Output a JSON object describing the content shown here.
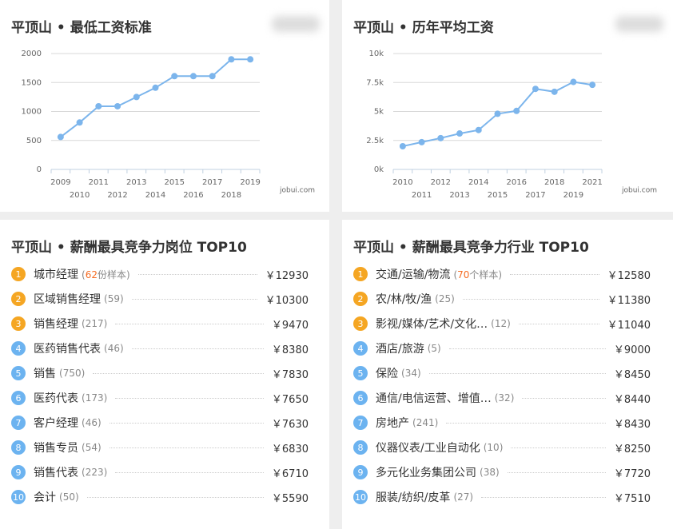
{
  "chart_data": [
    {
      "type": "line",
      "title": "平顶山 • 最低工资标准",
      "color": "#7cb5ec",
      "watermark": "jobui.com",
      "categories": [
        "2009",
        "2010",
        "2011",
        "2012",
        "2013",
        "2014",
        "2015",
        "2016",
        "2017",
        "2018",
        "2019"
      ],
      "values": [
        560,
        810,
        1090,
        1090,
        1250,
        1410,
        1610,
        1610,
        1610,
        1900,
        1900
      ],
      "ylim": [
        0,
        2000
      ],
      "yticks": [
        0,
        500,
        1000,
        1500,
        2000
      ],
      "grid": true
    },
    {
      "type": "line",
      "title": "平顶山 • 历年平均工资",
      "color": "#7cb5ec",
      "watermark": "jobui.com",
      "categories": [
        "2010",
        "2011",
        "2012",
        "2013",
        "2014",
        "2015",
        "2016",
        "2017",
        "2018",
        "2019",
        "2021"
      ],
      "values": [
        2000,
        2350,
        2700,
        3100,
        3400,
        4800,
        5050,
        6950,
        6700,
        7550,
        7300
      ],
      "ylim": [
        0,
        10000
      ],
      "yticks": [
        {
          "value": 0,
          "label": "0k"
        },
        {
          "value": 2500,
          "label": "2.5k"
        },
        {
          "value": 5000,
          "label": "5k"
        },
        {
          "value": 7500,
          "label": "7.5k"
        },
        {
          "value": 10000,
          "label": "10k"
        }
      ],
      "grid": true
    }
  ],
  "lists": [
    {
      "title": "平顶山 • 薪酬最具竞争力岗位 TOP10",
      "items": [
        {
          "rank": 1,
          "name": "城市经理",
          "count": 62,
          "count_note": "份样本",
          "salary": "￥12930"
        },
        {
          "rank": 2,
          "name": "区域销售经理",
          "count": 59,
          "salary": "￥10300"
        },
        {
          "rank": 3,
          "name": "销售经理",
          "count": 217,
          "salary": "￥9470"
        },
        {
          "rank": 4,
          "name": "医药销售代表",
          "count": 46,
          "salary": "￥8380"
        },
        {
          "rank": 5,
          "name": "销售",
          "count": 750,
          "salary": "￥7830"
        },
        {
          "rank": 6,
          "name": "医药代表",
          "count": 173,
          "salary": "￥7650"
        },
        {
          "rank": 7,
          "name": "客户经理",
          "count": 46,
          "salary": "￥7630"
        },
        {
          "rank": 8,
          "name": "销售专员",
          "count": 54,
          "salary": "￥6830"
        },
        {
          "rank": 9,
          "name": "销售代表",
          "count": 223,
          "salary": "￥6710"
        },
        {
          "rank": 10,
          "name": "会计",
          "count": 50,
          "salary": "￥5590"
        }
      ]
    },
    {
      "title": "平顶山 • 薪酬最具竞争力行业 TOP10",
      "items": [
        {
          "rank": 1,
          "name": "交通/运输/物流",
          "count": 70,
          "count_note": "个样本",
          "salary": "￥12580"
        },
        {
          "rank": 2,
          "name": "农/林/牧/渔",
          "count": 25,
          "salary": "￥11380"
        },
        {
          "rank": 3,
          "name": "影视/媒体/艺术/文化…",
          "count": 12,
          "salary": "￥11040"
        },
        {
          "rank": 4,
          "name": "酒店/旅游",
          "count": 5,
          "salary": "￥9000"
        },
        {
          "rank": 5,
          "name": "保险",
          "count": 34,
          "salary": "￥8450"
        },
        {
          "rank": 6,
          "name": "通信/电信运营、增值…",
          "count": 32,
          "salary": "￥8440"
        },
        {
          "rank": 7,
          "name": "房地产",
          "count": 241,
          "salary": "￥8430"
        },
        {
          "rank": 8,
          "name": "仪器仪表/工业自动化",
          "count": 10,
          "salary": "￥8250"
        },
        {
          "rank": 9,
          "name": "多元化业务集团公司",
          "count": 38,
          "salary": "￥7720"
        },
        {
          "rank": 10,
          "name": "服装/纺织/皮革",
          "count": 27,
          "salary": "￥7510"
        }
      ]
    }
  ]
}
